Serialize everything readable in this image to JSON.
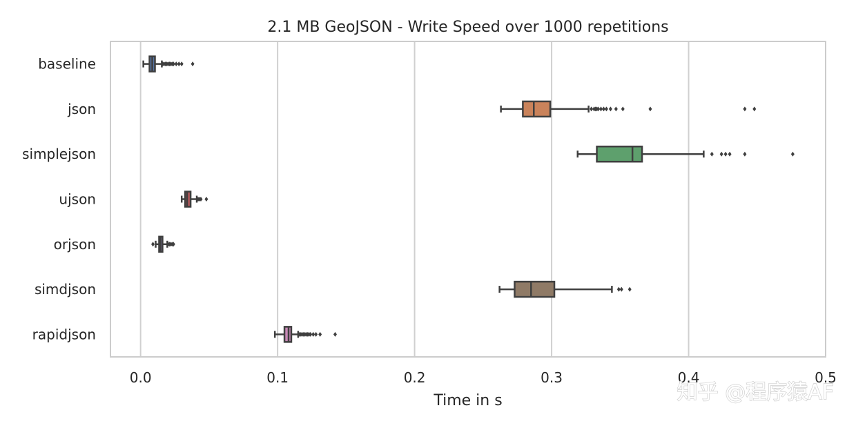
{
  "watermark": "知乎 @程序猿AF",
  "chart_data": {
    "type": "box",
    "title": "2.1 MB GeoJSON - Write Speed over 1000 repetitions",
    "xlabel": "Time in s",
    "ylabel": "",
    "xlim": [
      -0.022,
      0.5
    ],
    "xticks": [
      0.0,
      0.1,
      0.2,
      0.3,
      0.4,
      0.5
    ],
    "xtick_labels": [
      "0.0",
      "0.1",
      "0.2",
      "0.3",
      "0.4",
      "0.5"
    ],
    "grid": "vertical",
    "orientation": "horizontal",
    "categories": [
      "baseline",
      "json",
      "simplejson",
      "ujson",
      "orjson",
      "simdjson",
      "rapidjson"
    ],
    "series": [
      {
        "category": "baseline",
        "color": "#4c72b0",
        "whisker_low": 0.002,
        "q1": 0.0065,
        "median": 0.0085,
        "q3": 0.0105,
        "whisker_high": 0.0155,
        "outliers": [
          0.016,
          0.017,
          0.018,
          0.019,
          0.02,
          0.021,
          0.022,
          0.023,
          0.024,
          0.026,
          0.028,
          0.03,
          0.038
        ]
      },
      {
        "category": "json",
        "color": "#dd8452",
        "whisker_low": 0.263,
        "q1": 0.279,
        "median": 0.287,
        "q3": 0.299,
        "whisker_high": 0.327,
        "outliers": [
          0.329,
          0.331,
          0.332,
          0.333,
          0.334,
          0.336,
          0.338,
          0.34,
          0.343,
          0.347,
          0.352,
          0.372,
          0.441,
          0.448
        ]
      },
      {
        "category": "simplejson",
        "color": "#55a868",
        "whisker_low": 0.319,
        "q1": 0.333,
        "median": 0.359,
        "q3": 0.366,
        "whisker_high": 0.411,
        "outliers": [
          0.417,
          0.424,
          0.427,
          0.43,
          0.441,
          0.476
        ]
      },
      {
        "category": "ujson",
        "color": "#c44e52",
        "whisker_low": 0.03,
        "q1": 0.0325,
        "median": 0.034,
        "q3": 0.0365,
        "whisker_high": 0.041,
        "outliers": [
          0.042,
          0.043,
          0.044,
          0.048
        ]
      },
      {
        "category": "orjson",
        "color": "#8172b3",
        "whisker_low": 0.011,
        "q1": 0.0135,
        "median": 0.0145,
        "q3": 0.016,
        "whisker_high": 0.0195,
        "outliers": [
          0.009,
          0.02,
          0.021,
          0.022,
          0.023,
          0.024
        ]
      },
      {
        "category": "simdjson",
        "color": "#937860",
        "whisker_low": 0.262,
        "q1": 0.273,
        "median": 0.285,
        "q3": 0.302,
        "whisker_high": 0.344,
        "outliers": [
          0.349,
          0.351,
          0.357
        ]
      },
      {
        "category": "rapidjson",
        "color": "#da8bc3",
        "whisker_low": 0.098,
        "q1": 0.105,
        "median": 0.108,
        "q3": 0.11,
        "whisker_high": 0.115,
        "outliers": [
          0.116,
          0.117,
          0.118,
          0.119,
          0.12,
          0.121,
          0.122,
          0.123,
          0.124,
          0.126,
          0.128,
          0.131,
          0.142
        ]
      }
    ]
  }
}
